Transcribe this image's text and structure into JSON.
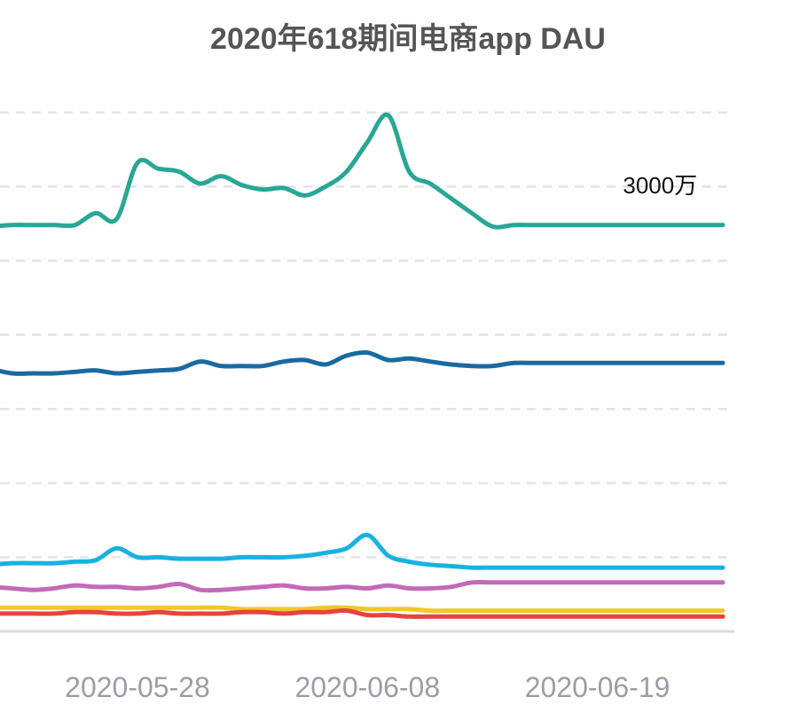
{
  "title": "2020年618期间电商app DAU",
  "chart_data": {
    "type": "line",
    "title": "2020年618期间电商app DAU",
    "xlabel": "",
    "ylabel": "",
    "x": [
      "2020-05-21",
      "2020-05-22",
      "2020-05-23",
      "2020-05-24",
      "2020-05-25",
      "2020-05-26",
      "2020-05-27",
      "2020-05-28",
      "2020-05-29",
      "2020-05-30",
      "2020-05-31",
      "2020-06-01",
      "2020-06-02",
      "2020-06-03",
      "2020-06-04",
      "2020-06-05",
      "2020-06-06",
      "2020-06-07",
      "2020-06-08",
      "2020-06-09",
      "2020-06-10",
      "2020-06-11",
      "2020-06-12",
      "2020-06-13",
      "2020-06-14",
      "2020-06-15",
      "2020-06-16",
      "2020-06-17",
      "2020-06-18",
      "2020-06-19",
      "2020-06-20",
      "2020-06-21",
      "2020-06-22",
      "2020-06-23",
      "2020-06-24",
      "2020-06-25"
    ],
    "x_ticks": [
      "2020-05-28",
      "2020-06-08",
      "2020-06-19"
    ],
    "ylim": [
      0,
      36
    ],
    "grid": true,
    "series": [
      {
        "color": "#2aa694",
        "values": [
          27.3,
          27.4,
          27.4,
          27.4,
          27.4,
          28.2,
          27.8,
          31.6,
          31.2,
          31.0,
          30.2,
          30.7,
          30.1,
          29.8,
          29.9,
          29.4,
          30.0,
          31.0,
          33.0,
          34.8,
          31.0,
          30.2,
          29.2,
          28.2,
          27.3,
          27.4,
          27.4,
          27.4,
          27.4,
          27.4,
          27.4,
          27.4,
          27.4,
          27.4,
          27.4,
          27.4
        ]
      },
      {
        "color": "#1a6aa1",
        "values": [
          17.7,
          17.4,
          17.4,
          17.4,
          17.5,
          17.6,
          17.4,
          17.5,
          17.6,
          17.7,
          18.2,
          17.9,
          17.9,
          17.9,
          18.2,
          18.3,
          18.0,
          18.6,
          18.8,
          18.3,
          18.4,
          18.2,
          18.0,
          17.9,
          17.9,
          18.1,
          18.1,
          18.1,
          18.1,
          18.1,
          18.1,
          18.1,
          18.1,
          18.1,
          18.1,
          18.1
        ]
      },
      {
        "color": "#19b2e0",
        "values": [
          4.5,
          4.6,
          4.6,
          4.6,
          4.7,
          4.8,
          5.6,
          5.0,
          5.0,
          4.9,
          4.9,
          4.9,
          5.0,
          5.0,
          5.0,
          5.1,
          5.3,
          5.6,
          6.5,
          5.1,
          4.7,
          4.5,
          4.4,
          4.3,
          4.3,
          4.3,
          4.3,
          4.3,
          4.3,
          4.3,
          4.3,
          4.3,
          4.3,
          4.3,
          4.3,
          4.3
        ]
      },
      {
        "color": "#c36ab8",
        "values": [
          3.0,
          2.9,
          2.8,
          2.9,
          3.1,
          3.0,
          3.0,
          2.9,
          3.0,
          3.2,
          2.8,
          2.8,
          2.9,
          3.0,
          3.1,
          2.9,
          2.9,
          3.0,
          2.9,
          3.1,
          2.9,
          2.9,
          3.0,
          3.3,
          3.3,
          3.3,
          3.3,
          3.3,
          3.3,
          3.3,
          3.3,
          3.3,
          3.3,
          3.3,
          3.3,
          3.3
        ]
      },
      {
        "color": "#f2c72a",
        "values": [
          1.6,
          1.6,
          1.6,
          1.6,
          1.6,
          1.6,
          1.6,
          1.6,
          1.6,
          1.6,
          1.6,
          1.6,
          1.5,
          1.5,
          1.5,
          1.5,
          1.6,
          1.6,
          1.5,
          1.5,
          1.5,
          1.4,
          1.4,
          1.4,
          1.4,
          1.4,
          1.4,
          1.4,
          1.4,
          1.4,
          1.4,
          1.4,
          1.4,
          1.4,
          1.4,
          1.4
        ]
      },
      {
        "color": "#e8433f",
        "values": [
          1.2,
          1.2,
          1.2,
          1.2,
          1.3,
          1.3,
          1.2,
          1.2,
          1.3,
          1.2,
          1.2,
          1.2,
          1.3,
          1.3,
          1.2,
          1.3,
          1.3,
          1.4,
          1.1,
          1.1,
          1.0,
          1.0,
          1.0,
          1.0,
          1.0,
          1.0,
          1.0,
          1.0,
          1.0,
          1.0,
          1.0,
          1.0,
          1.0,
          1.0,
          1.0,
          1.0
        ]
      }
    ],
    "annotations": [
      {
        "text": "3000万",
        "x": "2020-06-22"
      }
    ]
  }
}
